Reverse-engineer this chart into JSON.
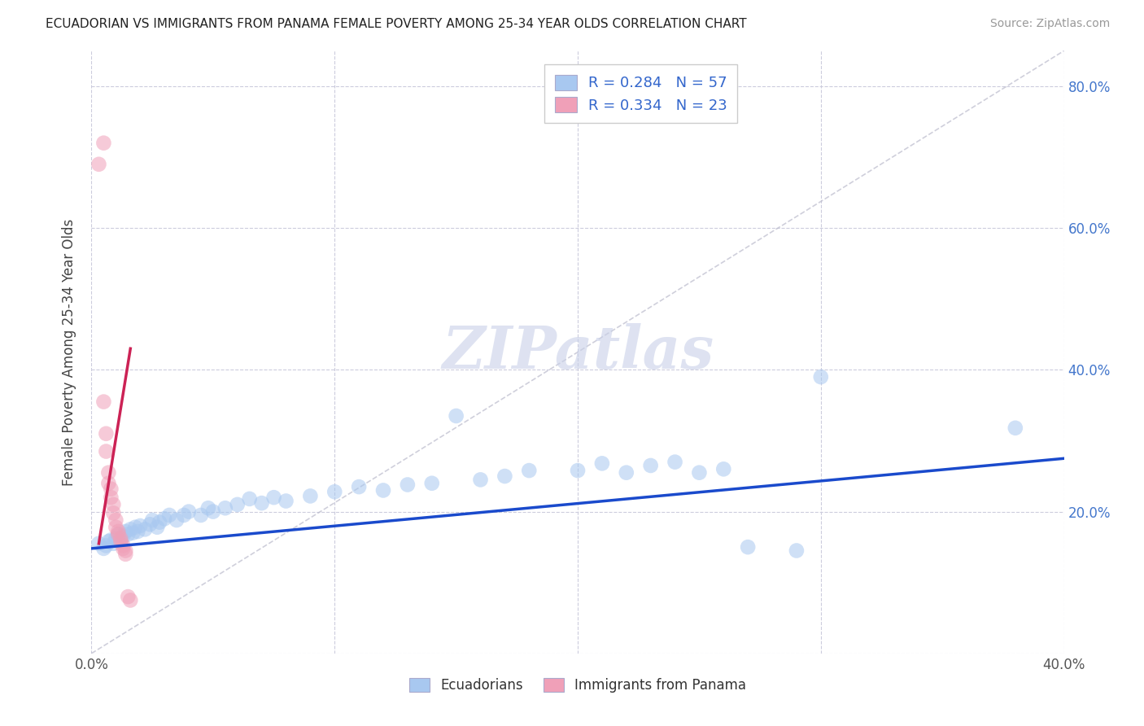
{
  "title": "ECUADORIAN VS IMMIGRANTS FROM PANAMA FEMALE POVERTY AMONG 25-34 YEAR OLDS CORRELATION CHART",
  "source": "Source: ZipAtlas.com",
  "ylabel": "Female Poverty Among 25-34 Year Olds",
  "xlim": [
    0.0,
    0.4
  ],
  "ylim": [
    0.0,
    0.85
  ],
  "xticks": [
    0.0,
    0.1,
    0.2,
    0.3,
    0.4
  ],
  "xticklabels": [
    "0.0%",
    "",
    "",
    "",
    "40.0%"
  ],
  "yticks": [
    0.0,
    0.2,
    0.4,
    0.6,
    0.8
  ],
  "yticklabels": [
    "",
    "",
    "",
    "",
    ""
  ],
  "right_yticks": [
    0.2,
    0.4,
    0.6,
    0.8
  ],
  "right_yticklabels": [
    "20.0%",
    "40.0%",
    "60.0%",
    "80.0%"
  ],
  "legend_entry1": "R = 0.284   N = 57",
  "legend_entry2": "R = 0.334   N = 23",
  "color_blue": "#A8C8F0",
  "color_pink": "#F0A0B8",
  "color_trend_blue": "#1A4ACC",
  "color_trend_pink": "#CC2255",
  "color_diag": "#BBBBCC",
  "color_watermark": "#C8D0E8",
  "watermark_text": "ZIPatlas",
  "blue_scatter": [
    [
      0.003,
      0.155
    ],
    [
      0.005,
      0.148
    ],
    [
      0.006,
      0.152
    ],
    [
      0.007,
      0.158
    ],
    [
      0.008,
      0.16
    ],
    [
      0.009,
      0.155
    ],
    [
      0.01,
      0.162
    ],
    [
      0.011,
      0.168
    ],
    [
      0.012,
      0.158
    ],
    [
      0.013,
      0.165
    ],
    [
      0.014,
      0.172
    ],
    [
      0.015,
      0.168
    ],
    [
      0.016,
      0.175
    ],
    [
      0.017,
      0.17
    ],
    [
      0.018,
      0.178
    ],
    [
      0.019,
      0.172
    ],
    [
      0.02,
      0.18
    ],
    [
      0.022,
      0.175
    ],
    [
      0.024,
      0.182
    ],
    [
      0.025,
      0.188
    ],
    [
      0.027,
      0.178
    ],
    [
      0.028,
      0.185
    ],
    [
      0.03,
      0.19
    ],
    [
      0.032,
      0.195
    ],
    [
      0.035,
      0.188
    ],
    [
      0.038,
      0.195
    ],
    [
      0.04,
      0.2
    ],
    [
      0.045,
      0.195
    ],
    [
      0.048,
      0.205
    ],
    [
      0.05,
      0.2
    ],
    [
      0.055,
      0.205
    ],
    [
      0.06,
      0.21
    ],
    [
      0.065,
      0.218
    ],
    [
      0.07,
      0.212
    ],
    [
      0.075,
      0.22
    ],
    [
      0.08,
      0.215
    ],
    [
      0.09,
      0.222
    ],
    [
      0.1,
      0.228
    ],
    [
      0.11,
      0.235
    ],
    [
      0.12,
      0.23
    ],
    [
      0.13,
      0.238
    ],
    [
      0.14,
      0.24
    ],
    [
      0.15,
      0.335
    ],
    [
      0.16,
      0.245
    ],
    [
      0.17,
      0.25
    ],
    [
      0.18,
      0.258
    ],
    [
      0.2,
      0.258
    ],
    [
      0.21,
      0.268
    ],
    [
      0.22,
      0.255
    ],
    [
      0.23,
      0.265
    ],
    [
      0.24,
      0.27
    ],
    [
      0.25,
      0.255
    ],
    [
      0.26,
      0.26
    ],
    [
      0.27,
      0.15
    ],
    [
      0.29,
      0.145
    ],
    [
      0.3,
      0.39
    ],
    [
      0.38,
      0.318
    ]
  ],
  "pink_scatter": [
    [
      0.003,
      0.69
    ],
    [
      0.005,
      0.72
    ],
    [
      0.005,
      0.355
    ],
    [
      0.006,
      0.31
    ],
    [
      0.006,
      0.285
    ],
    [
      0.007,
      0.255
    ],
    [
      0.007,
      0.24
    ],
    [
      0.008,
      0.232
    ],
    [
      0.008,
      0.22
    ],
    [
      0.009,
      0.21
    ],
    [
      0.009,
      0.198
    ],
    [
      0.01,
      0.188
    ],
    [
      0.01,
      0.178
    ],
    [
      0.011,
      0.172
    ],
    [
      0.011,
      0.168
    ],
    [
      0.012,
      0.162
    ],
    [
      0.012,
      0.158
    ],
    [
      0.013,
      0.152
    ],
    [
      0.013,
      0.148
    ],
    [
      0.014,
      0.145
    ],
    [
      0.014,
      0.14
    ],
    [
      0.015,
      0.08
    ],
    [
      0.016,
      0.075
    ]
  ],
  "blue_trend_x": [
    0.0,
    0.4
  ],
  "blue_trend_y": [
    0.148,
    0.275
  ],
  "pink_trend_x": [
    0.003,
    0.016
  ],
  "pink_trend_y": [
    0.155,
    0.43
  ]
}
